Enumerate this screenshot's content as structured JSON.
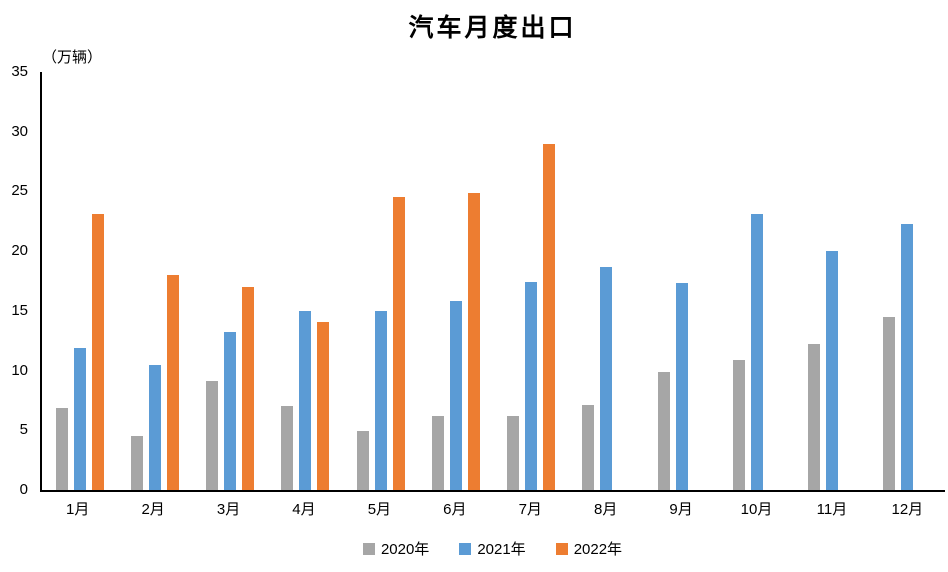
{
  "chart_data": {
    "type": "bar",
    "title": "汽车月度出口",
    "unit_label": "（万辆）",
    "categories": [
      "1月",
      "2月",
      "3月",
      "4月",
      "5月",
      "6月",
      "7月",
      "8月",
      "9月",
      "10月",
      "11月",
      "12月"
    ],
    "series": [
      {
        "name": "2020年",
        "color": "#A6A6A6",
        "values": [
          6.9,
          4.5,
          9.1,
          7.0,
          4.9,
          6.2,
          6.2,
          7.1,
          9.9,
          10.9,
          12.2,
          14.5
        ]
      },
      {
        "name": "2021年",
        "color": "#5B9BD5",
        "values": [
          11.9,
          10.5,
          13.2,
          15.0,
          15.0,
          15.8,
          17.4,
          18.7,
          17.3,
          23.1,
          20.0,
          22.3
        ]
      },
      {
        "name": "2022年",
        "color": "#ED7D31",
        "values": [
          23.1,
          18.0,
          17.0,
          14.1,
          24.5,
          24.9,
          29.0,
          null,
          null,
          null,
          null,
          null
        ]
      }
    ],
    "ylim": [
      0,
      35
    ],
    "yticks": [
      35,
      30,
      25,
      20,
      15,
      10,
      5,
      0
    ],
    "legend_position": "bottom",
    "grid": false,
    "axis_color": "#000000"
  }
}
